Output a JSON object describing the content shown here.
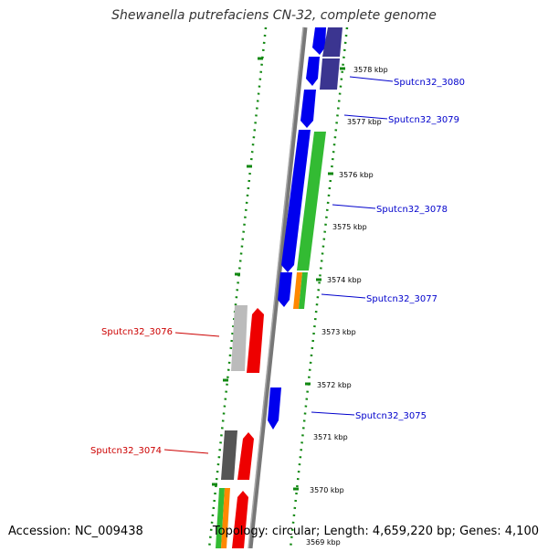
{
  "title": "Shewanella putrefaciens CN-32, complete genome",
  "accession_text": "Accession: NC_009438",
  "topology_text": "Topology: circular; Length: 4,659,220 bp; Genes: 4,100",
  "colors": {
    "blue_gene": "#0000ee",
    "navy_gene": "#3b3590",
    "green_gene": "#33bb33",
    "orange_gene": "#ff8800",
    "red_gene": "#ee0000",
    "gray_gene": "#bbbbbb",
    "dark_gray_gene": "#555555",
    "backbone": "#777777",
    "dotted_ring": "#118811",
    "label_blue": "#0000cc",
    "label_red": "#cc0000"
  },
  "kbp_ticks": [
    "3578 kbp",
    "3577 kbp",
    "3576 kbp",
    "3575 kbp",
    "3574 kbp",
    "3573 kbp",
    "3572 kbp",
    "3571 kbp",
    "3570 kbp",
    "3569 kbp"
  ],
  "gene_labels": [
    {
      "text": "Sputcn32_3080",
      "strand": "forward"
    },
    {
      "text": "Sputcn32_3079",
      "strand": "forward"
    },
    {
      "text": "Sputcn32_3078",
      "strand": "forward"
    },
    {
      "text": "Sputcn32_3077",
      "strand": "forward"
    },
    {
      "text": "Sputcn32_3076",
      "strand": "reverse"
    },
    {
      "text": "Sputcn32_3075",
      "strand": "forward"
    },
    {
      "text": "Sputcn32_3074",
      "strand": "reverse"
    }
  ]
}
